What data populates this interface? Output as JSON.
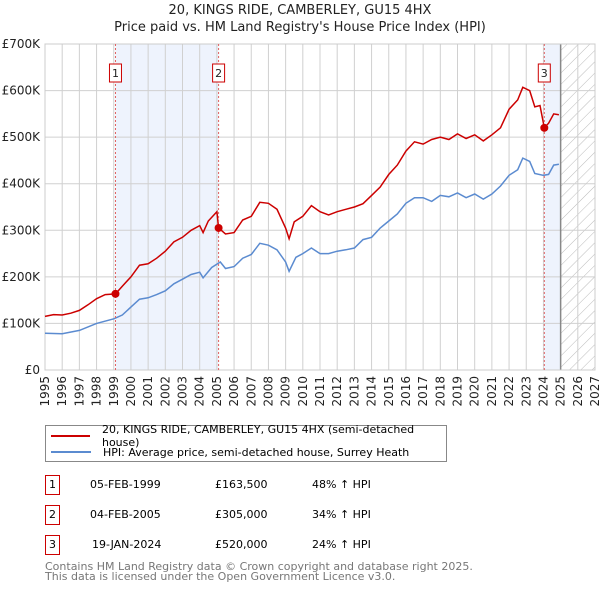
{
  "title": "20, KINGS RIDE, CAMBERLEY, GU15 4HX",
  "subtitle": "Price paid vs. HM Land Registry's House Price Index (HPI)",
  "chart_data": {
    "type": "line",
    "title": "20, KINGS RIDE, CAMBERLEY, GU15 4HX",
    "xlim": [
      1995,
      2027
    ],
    "ylim": [
      0,
      700000
    ],
    "x_ticks": [
      "1995",
      "1996",
      "1997",
      "1998",
      "1999",
      "2000",
      "2001",
      "2002",
      "2003",
      "2004",
      "2005",
      "2006",
      "2007",
      "2008",
      "2009",
      "2010",
      "2011",
      "2012",
      "2013",
      "2014",
      "2015",
      "2016",
      "2017",
      "2018",
      "2019",
      "2020",
      "2021",
      "2022",
      "2023",
      "2024",
      "2025",
      "2026",
      "2027"
    ],
    "y_ticks": [
      {
        "v": 0,
        "label": "£0"
      },
      {
        "v": 100000,
        "label": "£100K"
      },
      {
        "v": 200000,
        "label": "£200K"
      },
      {
        "v": 300000,
        "label": "£300K"
      },
      {
        "v": 400000,
        "label": "£400K"
      },
      {
        "v": 500000,
        "label": "£500K"
      },
      {
        "v": 600000,
        "label": "£600K"
      },
      {
        "v": 700000,
        "label": "£700K"
      }
    ],
    "grid": true,
    "shaded_ranges": [
      [
        1999.1,
        2005.1
      ],
      [
        2024.05,
        2025
      ]
    ],
    "hatched_from": 2025,
    "series": [
      {
        "name": "20, KINGS RIDE, CAMBERLEY, GU15 4HX (semi-detached house)",
        "color": "#cc0000",
        "x": [
          1995,
          1995.5,
          1996,
          1996.5,
          1997,
          1997.5,
          1998,
          1998.5,
          1999.1,
          1999.5,
          2000,
          2000.5,
          2001,
          2001.5,
          2002,
          2002.5,
          2003,
          2003.5,
          2004,
          2004.2,
          2004.5,
          2005,
          2005.1,
          2005.5,
          2006,
          2006.5,
          2007,
          2007.5,
          2008,
          2008.5,
          2009,
          2009.2,
          2009.5,
          2010,
          2010.5,
          2011,
          2011.5,
          2012,
          2012.5,
          2013,
          2013.5,
          2014,
          2014.5,
          2015,
          2015.5,
          2016,
          2016.5,
          2017,
          2017.5,
          2018,
          2018.5,
          2019,
          2019.5,
          2020,
          2020.5,
          2021,
          2021.5,
          2022,
          2022.5,
          2022.8,
          2023.2,
          2023.5,
          2023.8,
          2024.05,
          2024.3,
          2024.6,
          2024.9
        ],
        "y": [
          115000,
          119000,
          118000,
          122000,
          128000,
          140000,
          153000,
          162000,
          163500,
          180000,
          200000,
          225000,
          228000,
          240000,
          255000,
          275000,
          285000,
          300000,
          310000,
          295000,
          320000,
          340000,
          305000,
          292000,
          295000,
          322000,
          330000,
          360000,
          358000,
          345000,
          305000,
          282000,
          318000,
          330000,
          353000,
          340000,
          333000,
          340000,
          345000,
          350000,
          357000,
          375000,
          393000,
          420000,
          440000,
          470000,
          490000,
          485000,
          495000,
          500000,
          495000,
          507000,
          497000,
          505000,
          492000,
          505000,
          520000,
          560000,
          580000,
          607000,
          600000,
          565000,
          568000,
          520000,
          530000,
          550000,
          548000
        ]
      },
      {
        "name": "HPI: Average price, semi-detached house, Surrey Heath",
        "color": "#5b8bd0",
        "x": [
          1995,
          1996,
          1997,
          1998,
          1999,
          1999.5,
          2000,
          2000.5,
          2001,
          2001.5,
          2002,
          2002.5,
          2003,
          2003.5,
          2004,
          2004.2,
          2004.7,
          2005.2,
          2005.5,
          2006,
          2006.5,
          2007,
          2007.5,
          2008,
          2008.5,
          2009,
          2009.2,
          2009.6,
          2010,
          2010.5,
          2011,
          2011.5,
          2012,
          2012.5,
          2013,
          2013.5,
          2014,
          2014.5,
          2015,
          2015.5,
          2016,
          2016.5,
          2017,
          2017.5,
          2018,
          2018.5,
          2019,
          2019.5,
          2020,
          2020.5,
          2021,
          2021.5,
          2022,
          2022.5,
          2022.8,
          2023.2,
          2023.5,
          2024,
          2024.3,
          2024.6,
          2024.9
        ],
        "y": [
          79000,
          78000,
          85000,
          100000,
          110000,
          118000,
          135000,
          152000,
          155000,
          162000,
          170000,
          185000,
          195000,
          205000,
          210000,
          198000,
          220000,
          232000,
          218000,
          222000,
          240000,
          248000,
          272000,
          268000,
          258000,
          232000,
          212000,
          242000,
          250000,
          262000,
          250000,
          250000,
          255000,
          258000,
          262000,
          280000,
          285000,
          305000,
          320000,
          335000,
          358000,
          370000,
          370000,
          362000,
          375000,
          372000,
          380000,
          370000,
          378000,
          367000,
          378000,
          395000,
          418000,
          430000,
          455000,
          448000,
          422000,
          418000,
          420000,
          440000,
          442000
        ]
      }
    ],
    "sales": [
      {
        "id": "1",
        "x": 1999.1,
        "y": 163500
      },
      {
        "id": "2",
        "x": 2005.1,
        "y": 305000
      },
      {
        "id": "3",
        "x": 2024.05,
        "y": 520000
      }
    ]
  },
  "legend": {
    "property": "20, KINGS RIDE, CAMBERLEY, GU15 4HX (semi-detached house)",
    "hpi": "HPI: Average price, semi-detached house, Surrey Heath"
  },
  "transactions": [
    {
      "id": "1",
      "date": "05-FEB-1999",
      "price": "£163,500",
      "hpi": "48% ↑ HPI"
    },
    {
      "id": "2",
      "date": "04-FEB-2005",
      "price": "£305,000",
      "hpi": "34% ↑ HPI"
    },
    {
      "id": "3",
      "date": "19-JAN-2024",
      "price": "£520,000",
      "hpi": "24% ↑ HPI"
    }
  ],
  "footer": {
    "line1": "Contains HM Land Registry data © Crown copyright and database right 2025.",
    "line2": "This data is licensed under the Open Government Licence v3.0."
  }
}
